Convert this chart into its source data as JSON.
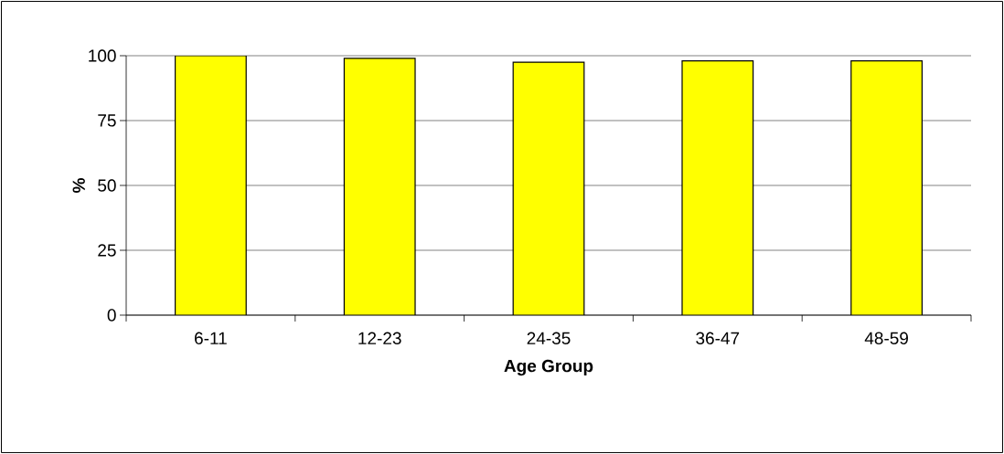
{
  "chart_data": {
    "type": "bar",
    "categories": [
      "6-11",
      "12-23",
      "24-35",
      "36-47",
      "48-59"
    ],
    "values": [
      100,
      99,
      97.5,
      98,
      98
    ],
    "color": "#ffff00",
    "xlabel": "Age Group",
    "ylabel": "%",
    "ylim": [
      0,
      100
    ],
    "yticks": [
      0,
      25,
      50,
      75,
      100
    ],
    "grid": "y"
  }
}
